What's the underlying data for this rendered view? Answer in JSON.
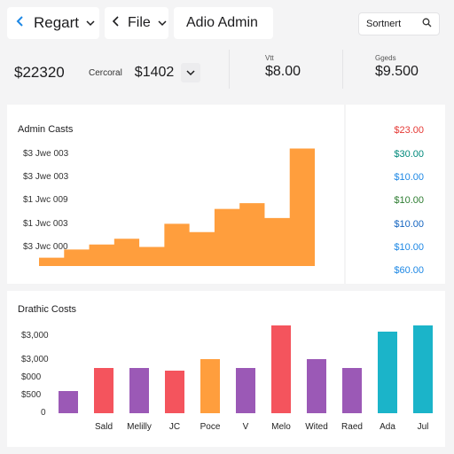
{
  "topbar": {
    "back_label": "Regart",
    "file_label": "File",
    "title": "Adio Admin",
    "search_label": "Sortnert"
  },
  "stats": {
    "total": "$22320",
    "filter_label": "Cercoral",
    "amount": "$1402",
    "card1_label": "Vtt",
    "card1_value": "$8.00",
    "card2_label": "Ggeds",
    "card2_value": "$9.500"
  },
  "admin_panel": {
    "title": "Admin Casts",
    "y_labels": [
      "$3 Jwe 003",
      "$3 Jwe 003",
      "$1 Jwc 009",
      "$1 Jwc 003",
      "$3 Jwc 000"
    ],
    "right_values": [
      {
        "text": "$23.00",
        "color": "#e53935"
      },
      {
        "text": "$30.00",
        "color": "#00897b"
      },
      {
        "text": "$10.00",
        "color": "#1e88e5"
      },
      {
        "text": "$10.00",
        "color": "#2e7d32"
      },
      {
        "text": "$10.00",
        "color": "#1565c0"
      },
      {
        "text": "$10.00",
        "color": "#1e88e5"
      },
      {
        "text": "$60.00",
        "color": "#1e88e5"
      }
    ]
  },
  "drastic_panel": {
    "title": "Drathic Costs",
    "y_labels": [
      "$3,000",
      "$3,000",
      "$000",
      "$500",
      "0"
    ]
  },
  "colors": {
    "accent_underline": "#1e88e5",
    "area_fill": "#ff9e3d"
  },
  "chart_data": [
    {
      "type": "area",
      "title": "Admin Casts",
      "step": true,
      "values": [
        1,
        2,
        2.6,
        3.3,
        2.3,
        5.1,
        4.1,
        6.9,
        7.6,
        5.8,
        14.2
      ],
      "ylim": [
        0,
        15
      ]
    },
    {
      "type": "bar",
      "title": "Drathic Costs",
      "categories": [
        "",
        "Sald",
        "Melilly",
        "JC",
        "Poce",
        "V",
        "Melo",
        "Wited",
        "Raed",
        "Ada",
        "Jul"
      ],
      "values": [
        1.0,
        2.0,
        2.0,
        1.9,
        2.4,
        2.0,
        3.9,
        2.4,
        2.0,
        3.6,
        3.9
      ],
      "colors": [
        "#9b59b6",
        "#f4545d",
        "#9b59b6",
        "#f4545d",
        "#ff9e3d",
        "#9b59b6",
        "#f4545d",
        "#9b59b6",
        "#9b59b6",
        "#1bb4c9",
        "#1bb4c9"
      ],
      "ylim": [
        0,
        4
      ]
    }
  ]
}
